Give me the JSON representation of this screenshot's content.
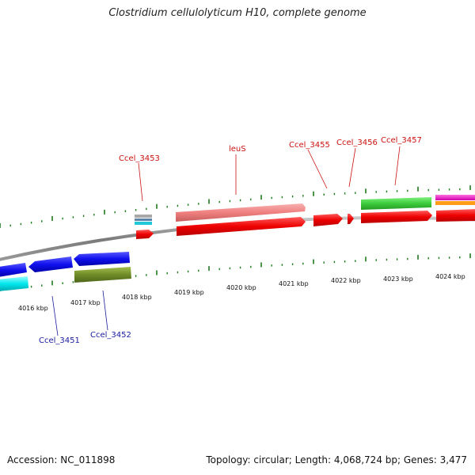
{
  "title": "Clostridium cellulolyticum H10, complete genome",
  "footer": {
    "accession": "Accession: NC_011898",
    "summary": "Topology: circular; Length: 4,068,724 bp; Genes: 3,477"
  },
  "colors": {
    "backbone": "#888888",
    "tick": "#1f7a1f",
    "label_top": "#cc1111",
    "label_bottom": "#1a1aa0"
  },
  "scale_labels": [
    "4016 kbp",
    "4017 kbp",
    "4018 kbp",
    "4019 kbp",
    "4020 kbp",
    "4021 kbp",
    "4022 kbp",
    "4023 kbp",
    "4024 kbp"
  ],
  "gene_labels_top": [
    "Ccel_3453",
    "leuS",
    "Ccel_3455",
    "Ccel_3456",
    "Ccel_3457"
  ],
  "gene_labels_bottom": [
    "Ccel_3451",
    "Ccel_3452"
  ]
}
